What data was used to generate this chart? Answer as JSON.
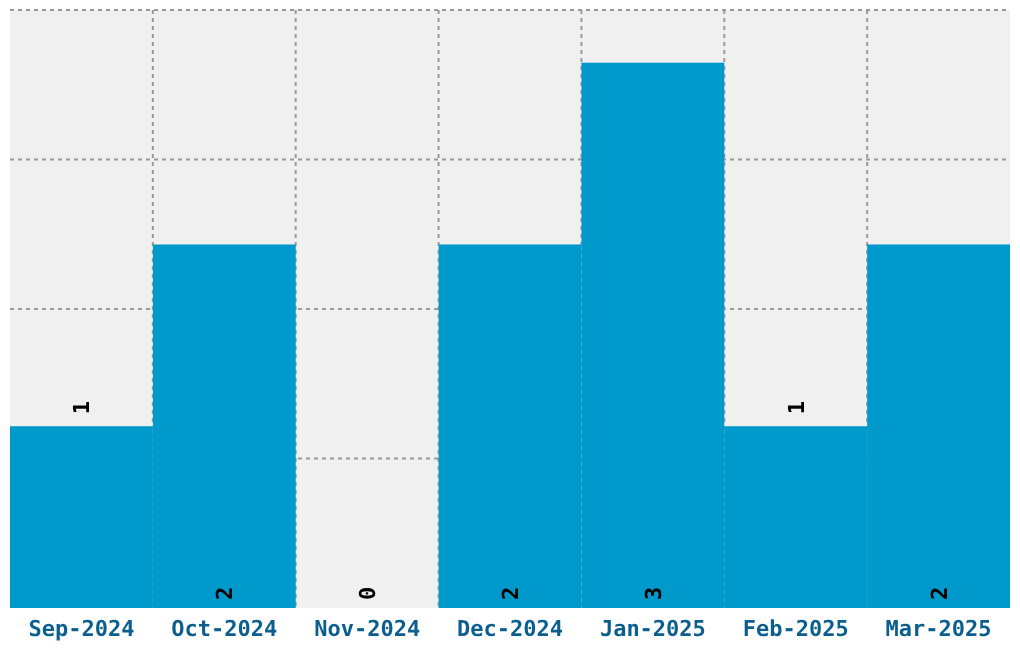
{
  "chart_data": {
    "type": "bar",
    "categories": [
      "Sep-2024",
      "Oct-2024",
      "Nov-2024",
      "Dec-2024",
      "Jan-2025",
      "Feb-2025",
      "Mar-2025"
    ],
    "values": [
      1,
      2,
      0,
      2,
      3,
      1,
      2
    ],
    "color": "#0099cc",
    "data_labels": true,
    "ylim": [
      0,
      3.29
    ],
    "yticks": [
      {
        "value": 0.8225,
        "label": null
      },
      {
        "value": 1.645,
        "label": null
      },
      {
        "value": 2.4675,
        "label": null
      },
      {
        "value": 3.29,
        "label": null
      }
    ],
    "grid": true,
    "tick_labels": "x"
  }
}
